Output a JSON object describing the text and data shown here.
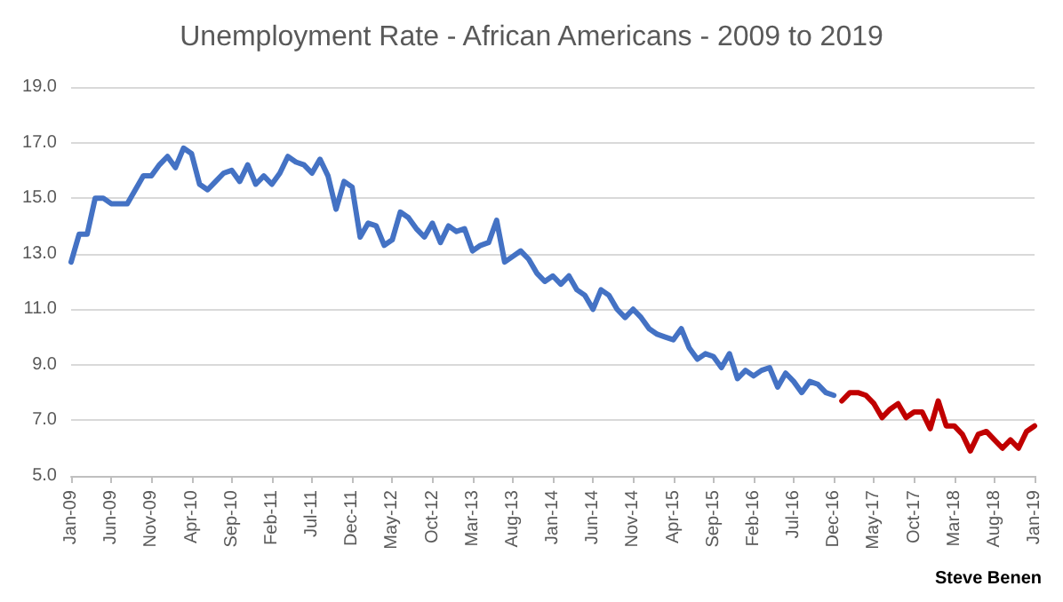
{
  "chart_data": {
    "type": "line",
    "title": "Unemployment Rate - African Americans - 2009 to 2019",
    "categories": [
      "Jan-09",
      null,
      null,
      null,
      null,
      "Jun-09",
      null,
      null,
      null,
      null,
      "Nov-09",
      null,
      null,
      null,
      null,
      "Apr-10",
      null,
      null,
      null,
      null,
      "Sep-10",
      null,
      null,
      null,
      null,
      "Feb-11",
      null,
      null,
      null,
      null,
      "Jul-11",
      null,
      null,
      null,
      null,
      "Dec-11",
      null,
      null,
      null,
      null,
      "May-12",
      null,
      null,
      null,
      null,
      "Oct-12",
      null,
      null,
      null,
      null,
      "Mar-13",
      null,
      null,
      null,
      null,
      "Aug-13",
      null,
      null,
      null,
      null,
      "Jan-14",
      null,
      null,
      null,
      null,
      "Jun-14",
      null,
      null,
      null,
      null,
      "Nov-14",
      null,
      null,
      null,
      null,
      "Apr-15",
      null,
      null,
      null,
      null,
      "Sep-15",
      null,
      null,
      null,
      null,
      "Feb-16",
      null,
      null,
      null,
      null,
      "Jul-16",
      null,
      null,
      null,
      null,
      "Dec-16",
      null,
      null,
      null,
      null,
      "May-17",
      null,
      null,
      null,
      null,
      "Oct-17",
      null,
      null,
      null,
      null,
      "Mar-18",
      null,
      null,
      null,
      null,
      "Aug-18",
      null,
      null,
      null,
      null,
      "Jan-19"
    ],
    "series": [
      {
        "color": "#4472c4",
        "values": [
          12.7,
          13.7,
          13.7,
          15.0,
          15.0,
          14.8,
          14.8,
          14.8,
          15.3,
          15.8,
          15.8,
          16.2,
          16.5,
          16.1,
          16.8,
          16.6,
          15.5,
          15.3,
          15.6,
          15.9,
          16.0,
          15.6,
          16.2,
          15.5,
          15.8,
          15.5,
          15.9,
          16.5,
          16.3,
          16.2,
          15.9,
          16.4,
          15.8,
          14.6,
          15.6,
          15.4,
          13.6,
          14.1,
          14.0,
          13.3,
          13.5,
          14.5,
          14.3,
          13.9,
          13.6,
          14.1,
          13.4,
          14.0,
          13.8,
          13.9,
          13.1,
          13.3,
          13.4,
          14.2,
          12.7,
          12.9,
          13.1,
          12.8,
          12.3,
          12.0,
          12.2,
          11.9,
          12.2,
          11.7,
          11.5,
          11.0,
          11.7,
          11.5,
          11.0,
          10.7,
          11.0,
          10.7,
          10.3,
          10.1,
          10.0,
          9.9,
          10.3,
          9.6,
          9.2,
          9.4,
          9.3,
          8.9,
          9.4,
          8.5,
          8.8,
          8.6,
          8.8,
          8.9,
          8.2,
          8.7,
          8.4,
          8.0,
          8.4,
          8.3,
          8.0,
          7.9,
          null,
          null,
          null,
          null,
          null,
          null,
          null,
          null,
          null,
          null,
          null,
          null,
          null,
          null,
          null,
          null,
          null,
          null,
          null,
          null,
          null,
          null,
          null,
          null,
          null
        ]
      },
      {
        "color": "#c00000",
        "values": [
          null,
          null,
          null,
          null,
          null,
          null,
          null,
          null,
          null,
          null,
          null,
          null,
          null,
          null,
          null,
          null,
          null,
          null,
          null,
          null,
          null,
          null,
          null,
          null,
          null,
          null,
          null,
          null,
          null,
          null,
          null,
          null,
          null,
          null,
          null,
          null,
          null,
          null,
          null,
          null,
          null,
          null,
          null,
          null,
          null,
          null,
          null,
          null,
          null,
          null,
          null,
          null,
          null,
          null,
          null,
          null,
          null,
          null,
          null,
          null,
          null,
          null,
          null,
          null,
          null,
          null,
          null,
          null,
          null,
          null,
          null,
          null,
          null,
          null,
          null,
          null,
          null,
          null,
          null,
          null,
          null,
          null,
          null,
          null,
          null,
          null,
          null,
          null,
          null,
          null,
          null,
          null,
          null,
          null,
          null,
          null,
          7.7,
          8.0,
          8.0,
          7.9,
          7.6,
          7.1,
          7.4,
          7.6,
          7.1,
          7.3,
          7.3,
          6.7,
          7.7,
          6.8,
          6.8,
          6.5,
          5.9,
          6.5,
          6.6,
          6.3,
          6.0,
          6.3,
          6.0,
          6.6,
          6.8
        ]
      }
    ],
    "ylim": [
      5,
      19
    ],
    "yticks": [
      {
        "value": 5,
        "label": "5.0"
      },
      {
        "value": 7,
        "label": "7.0"
      },
      {
        "value": 9,
        "label": "9.0"
      },
      {
        "value": 11,
        "label": "11.0"
      },
      {
        "value": 13,
        "label": "13.0"
      },
      {
        "value": 15,
        "label": "15.0"
      },
      {
        "value": 17,
        "label": "17.0"
      },
      {
        "value": 19,
        "label": "19.0"
      }
    ],
    "grid": "y",
    "annotations": [
      "Steve Benen"
    ]
  }
}
